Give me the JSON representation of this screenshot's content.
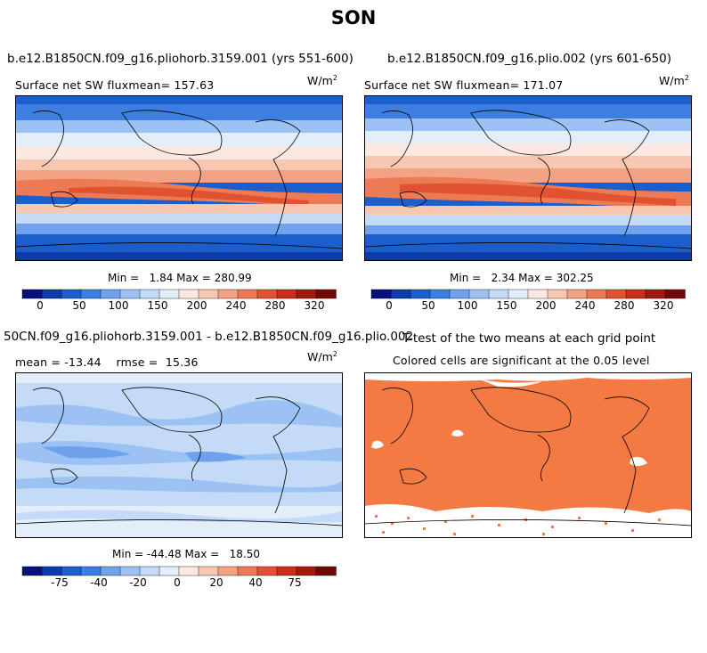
{
  "figure_title": "SON",
  "colors": {
    "seq_colorbar": [
      "#08107a",
      "#0d3ca8",
      "#1c5ecb",
      "#3d7fe0",
      "#6ea2ec",
      "#9cc2f3",
      "#c4dbf7",
      "#e4eefb",
      "#fde9e1",
      "#f8c7b2",
      "#f3a283",
      "#ec7a55",
      "#e15330",
      "#c93019",
      "#a11a0f",
      "#6d0a07"
    ],
    "diff_colorbar": [
      "#08107a",
      "#0d3ca8",
      "#1c5ecb",
      "#3d7fe0",
      "#6ea2ec",
      "#9cc2f3",
      "#c4dbf7",
      "#e4eefb",
      "#fde9e1",
      "#f8c7b2",
      "#f3a283",
      "#ec7a55",
      "#e15330",
      "#c93019",
      "#a11a0f",
      "#6d0a07"
    ],
    "significant": "#f47a43"
  },
  "chart_data": [
    {
      "type": "heatmap",
      "title": "b.e12.B1850CN.f09_g16.pliohorb.3159.001 (yrs 551-600)",
      "subtitle": "Surface net SW flux",
      "mean_label": "mean=",
      "mean": "157.63",
      "units_base": "W/m",
      "units_exp": "2",
      "min_label": "Min =",
      "min": "1.84",
      "max_label": "Max =",
      "max": "280.99",
      "colorbar_ticks": [
        "0",
        "50",
        "100",
        "150",
        "200",
        "240",
        "280",
        "320"
      ]
    },
    {
      "type": "heatmap",
      "title": "b.e12.B1850CN.f09_g16.plio.002 (yrs 601-650)",
      "subtitle": "Surface net SW flux",
      "mean_label": "mean=",
      "mean": "171.07",
      "units_base": "W/m",
      "units_exp": "2",
      "min_label": "Min =",
      "min": "2.34",
      "max_label": "Max =",
      "max": "302.25",
      "colorbar_ticks": [
        "0",
        "50",
        "100",
        "150",
        "200",
        "240",
        "280",
        "320"
      ]
    },
    {
      "type": "heatmap",
      "title": "50CN.f09_g16.pliohorb.3159.001 - b.e12.B1850CN.f09_g16.plio.002",
      "mean_label": "mean =",
      "mean": "-13.44",
      "rmse_label": "rmse =",
      "rmse": "15.36",
      "units_base": "W/m",
      "units_exp": "2",
      "min_label": "Min =",
      "min": "-44.48",
      "max_label": "Max =",
      "max": "18.50",
      "colorbar_ticks": [
        "-75",
        "-40",
        "-20",
        "0",
        "20",
        "40",
        "75"
      ]
    },
    {
      "type": "heatmap",
      "title": "T-test of the two means at each grid point",
      "subtitle": "Colored cells are significant at the 0.05 level"
    }
  ]
}
